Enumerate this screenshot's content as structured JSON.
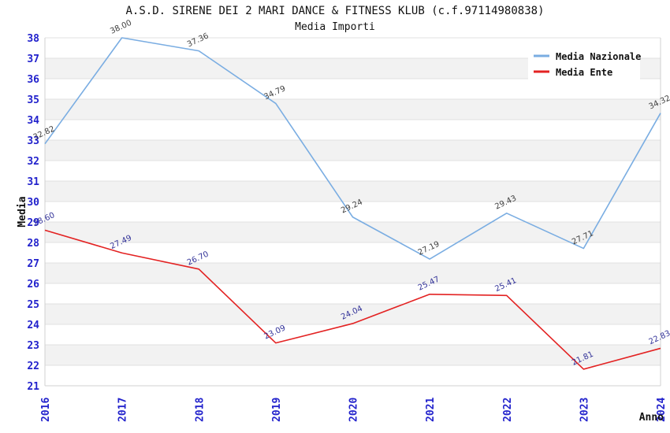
{
  "title": "A.S.D. SIRENE DEI 2 MARI DANCE & FITNESS KLUB (c.f.97114980838)",
  "subtitle": "Media Importi",
  "chart_data": {
    "type": "line",
    "x": [
      2016,
      2017,
      2018,
      2019,
      2020,
      2021,
      2022,
      2023,
      2024
    ],
    "series": [
      {
        "name": "Media Nazionale",
        "color": "#7aade2",
        "label_color": "#404040",
        "values": [
          32.82,
          38.0,
          37.36,
          34.79,
          29.24,
          27.19,
          29.43,
          27.71,
          34.32
        ]
      },
      {
        "name": "Media Ente",
        "color": "#e32222",
        "label_color": "#333399",
        "values": [
          28.6,
          27.49,
          26.7,
          23.09,
          24.04,
          25.47,
          25.41,
          21.81,
          22.83
        ]
      }
    ],
    "xlabel": "Anno",
    "ylabel": "Media",
    "ylim": [
      21,
      38
    ],
    "ytick_step": 1,
    "grid": true,
    "legend_position": "top-right",
    "style": {
      "tick_label_color": "#2222cc",
      "axis_title_color": "#111111",
      "band_color": "#f2f2f2",
      "band_alt_color": "#ffffff",
      "grid_color": "#e0e0e0",
      "border_color": "#d0d0d0",
      "legend_bg": "#ffffff",
      "legend_text_color": "#111111"
    }
  }
}
